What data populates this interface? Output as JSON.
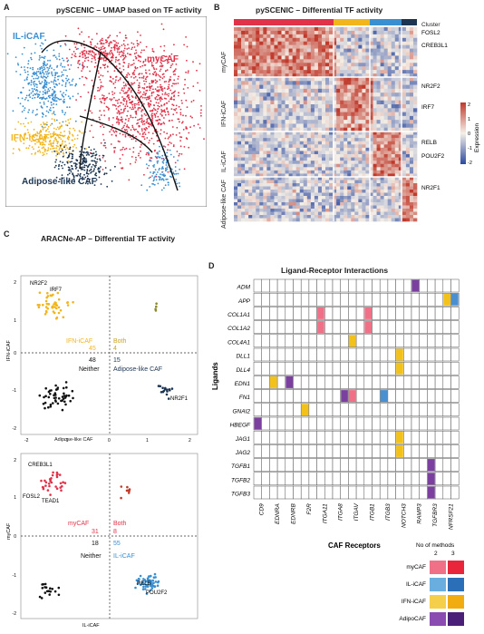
{
  "panels": {
    "a": "A",
    "b": "B",
    "c": "C",
    "d": "D"
  },
  "umap": {
    "title": "pySCENIC – UMAP based on TF activity",
    "clusters": [
      {
        "name": "IL-iCAF",
        "color": "#3a8fd1"
      },
      {
        "name": "myCAF",
        "color": "#e0334a"
      },
      {
        "name": "IFN-iCAF",
        "color": "#f2b51b"
      },
      {
        "name": "Adipose-like CAF",
        "color": "#1c3552"
      }
    ]
  },
  "heatmap": {
    "title": "pySCENIC – Differential TF activity",
    "cluster_label": "Cluster",
    "row_groups": [
      "myCAF",
      "IFN-iCAF",
      "IL-iCAF",
      "Adipose-like CAF"
    ],
    "genes": [
      "FOSL2",
      "CREB3L1",
      "NR2F2",
      "IRF7",
      "RELB",
      "POU2F2",
      "NR2F1"
    ],
    "legend_title": "Expression",
    "legend_ticks": [
      "2",
      "1",
      "0",
      "-1",
      "-2"
    ]
  },
  "aracne": {
    "title": "ARACNe-AP – Differential TF activity",
    "top": {
      "ylabel": "IFN-iCAF",
      "xlabel": "Adipose-like CAF",
      "yticks": [
        "2",
        "1",
        "0",
        "-1",
        "-2"
      ],
      "xticks": [
        "-2",
        "-1",
        "0",
        "1",
        "2"
      ],
      "genes": [
        "NR2F2",
        "IRF7",
        "NR2F1"
      ],
      "q_tl": "IFN-iCAF",
      "q_tr": "Both",
      "q_bl": "Neither",
      "q_br": "Adipose-like CAF",
      "n_tl": "45",
      "n_tr": "4",
      "n_bl": "48",
      "n_br": "15"
    },
    "bottom": {
      "ylabel": "myCAF",
      "xlabel": "IL-iCAF",
      "yticks": [
        "2",
        "1",
        "0",
        "-1",
        "-2"
      ],
      "xticks": [
        "-2",
        "-1",
        "0",
        "1",
        "2"
      ],
      "genes": [
        "CREB3L1",
        "FOSL2",
        "TEAD1",
        "RELB",
        "POU2F2"
      ],
      "q_tl": "myCAF",
      "q_tr": "Both",
      "q_bl": "Neither",
      "q_br": "IL-iCAF",
      "n_tl": "31",
      "n_tr": "8",
      "n_bl": "18",
      "n_br": "55"
    }
  },
  "lr": {
    "title": "Ligand-Receptor Interactions",
    "ylabel": "Ligands",
    "xlabel": "CAF Receptors",
    "ligands": [
      "ADM",
      "APP",
      "COL1A1",
      "COL1A2",
      "COL4A1",
      "DLL1",
      "DLL4",
      "EDN1",
      "FN1",
      "GNAI2",
      "HBEGF",
      "JAG1",
      "JAG2",
      "TGFB1",
      "TGFB2",
      "TGFB3"
    ],
    "receptors": [
      "CD9",
      "EDNRA",
      "EDNRB",
      "F2R",
      "ITGA11",
      "ITGA8",
      "ITGAV",
      "ITGB1",
      "ITGB3",
      "NOTCH3",
      "RAMP3",
      "TGFBR3",
      "NFRSF21"
    ],
    "cells": [
      {
        "l": 0,
        "r": 10,
        "s": 0,
        "c": "#7b3fa0"
      },
      {
        "l": 1,
        "r": 12,
        "s": 0,
        "c": "#f2c21b"
      },
      {
        "l": 1,
        "r": 12,
        "s": 1,
        "c": "#4a90d0"
      },
      {
        "l": 2,
        "r": 4,
        "s": 0,
        "c": "#f07088"
      },
      {
        "l": 2,
        "r": 7,
        "s": 0,
        "c": "#f07088"
      },
      {
        "l": 3,
        "r": 4,
        "s": 0,
        "c": "#f07088"
      },
      {
        "l": 3,
        "r": 7,
        "s": 0,
        "c": "#f07088"
      },
      {
        "l": 4,
        "r": 6,
        "s": 0,
        "c": "#f2c21b"
      },
      {
        "l": 5,
        "r": 9,
        "s": 0,
        "c": "#f2c21b"
      },
      {
        "l": 6,
        "r": 9,
        "s": 0,
        "c": "#f2c21b"
      },
      {
        "l": 7,
        "r": 1,
        "s": 0,
        "c": "#f2c21b"
      },
      {
        "l": 7,
        "r": 2,
        "s": 0,
        "c": "#7b3fa0"
      },
      {
        "l": 8,
        "r": 6,
        "s": 0,
        "c": "#f07088"
      },
      {
        "l": 8,
        "r": 5,
        "s": 1,
        "c": "#7b3fa0"
      },
      {
        "l": 8,
        "r": 8,
        "s": 0,
        "c": "#4a90d0"
      },
      {
        "l": 9,
        "r": 3,
        "s": 0,
        "c": "#f2c21b"
      },
      {
        "l": 10,
        "r": 0,
        "s": 0,
        "c": "#7b3fa0"
      },
      {
        "l": 11,
        "r": 9,
        "s": 0,
        "c": "#f2c21b"
      },
      {
        "l": 12,
        "r": 9,
        "s": 0,
        "c": "#f2c21b"
      },
      {
        "l": 13,
        "r": 11,
        "s": 0,
        "c": "#7b3fa0"
      },
      {
        "l": 14,
        "r": 11,
        "s": 0,
        "c": "#7b3fa0"
      },
      {
        "l": 15,
        "r": 11,
        "s": 0,
        "c": "#7b3fa0"
      }
    ],
    "legend": {
      "methods_label": "No of methods",
      "col2": "2",
      "col3": "3",
      "rows": [
        {
          "name": "myCAF",
          "c2": "#f07088",
          "c3": "#e8253a"
        },
        {
          "name": "IL-iCAF",
          "c2": "#6aaee0",
          "c3": "#2a6fb8"
        },
        {
          "name": "IFN-iCAF",
          "c2": "#f6cf4a",
          "c3": "#f0ac10"
        },
        {
          "name": "AdipoCAF",
          "c2": "#8a4cb0",
          "c3": "#4a1f78"
        }
      ]
    }
  }
}
